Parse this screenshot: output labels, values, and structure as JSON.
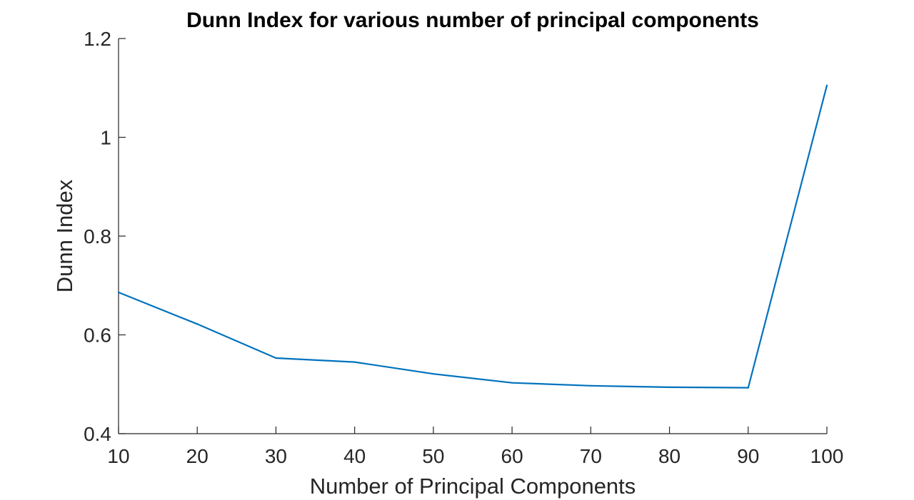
{
  "chart_data": {
    "type": "line",
    "title": "Dunn Index for various number of principal components",
    "xlabel": "Number of Principal Components",
    "ylabel": "Dunn Index",
    "xlim": [
      10,
      100
    ],
    "ylim": [
      0.4,
      1.2
    ],
    "xticks": [
      10,
      20,
      30,
      40,
      50,
      60,
      70,
      80,
      90,
      100
    ],
    "yticks": [
      0.4,
      0.6,
      0.8,
      1,
      1.2
    ],
    "xtick_labels": [
      "10",
      "20",
      "30",
      "40",
      "50",
      "60",
      "70",
      "80",
      "90",
      "100"
    ],
    "ytick_labels": [
      "0.4",
      "0.6",
      "0.8",
      "1",
      "1.2"
    ],
    "grid": false,
    "series": [
      {
        "color": "#0072BD",
        "x": [
          10,
          20,
          30,
          40,
          50,
          60,
          70,
          80,
          90,
          100
        ],
        "y": [
          0.686,
          0.622,
          0.553,
          0.545,
          0.521,
          0.503,
          0.497,
          0.494,
          0.493,
          1.105
        ]
      }
    ]
  }
}
